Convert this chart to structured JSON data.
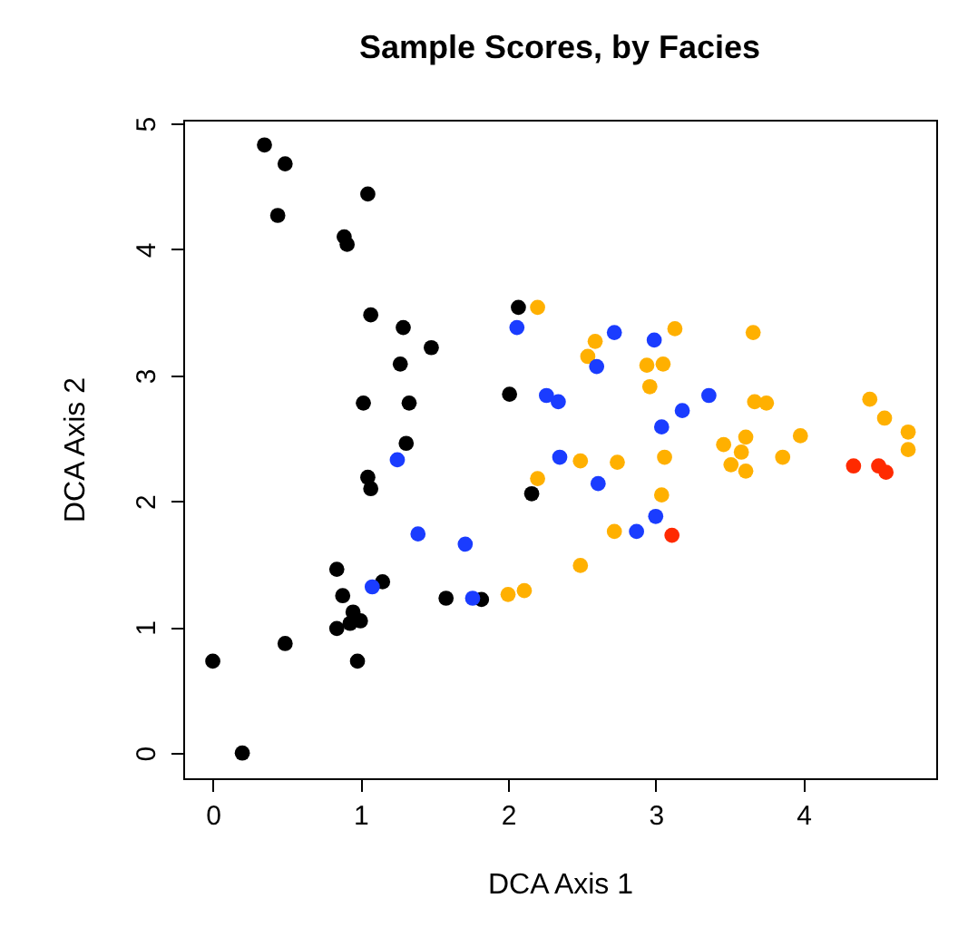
{
  "chart_data": {
    "type": "scatter",
    "title": "Sample Scores, by Facies",
    "xlabel": "DCA Axis 1",
    "ylabel": "DCA Axis 2",
    "xlim": [
      -0.2,
      4.9
    ],
    "ylim": [
      -0.2,
      5.03
    ],
    "xticks": [
      0,
      1,
      2,
      3,
      4
    ],
    "yticks": [
      0,
      1,
      2,
      3,
      4,
      5
    ],
    "marker": "circle",
    "series": [
      {
        "color": "#000000",
        "x": [
          0.35,
          0.49,
          1.05,
          0.44,
          0.89,
          0.91,
          1.07,
          1.29,
          1.48,
          1.27,
          1.02,
          1.33,
          1.31,
          2.07,
          2.01,
          1.05,
          1.07,
          2.16,
          0.84,
          1.15,
          0.88,
          0.95,
          1.0,
          0.84,
          0.93,
          0.49,
          0.0,
          0.98,
          0.2,
          1.58,
          1.82
        ],
        "values": [
          4.83,
          4.68,
          4.44,
          4.27,
          4.1,
          4.04,
          3.48,
          3.38,
          3.22,
          3.09,
          2.78,
          2.78,
          2.46,
          3.54,
          2.85,
          2.19,
          2.1,
          2.06,
          1.46,
          1.36,
          1.25,
          1.12,
          1.05,
          0.99,
          1.03,
          0.87,
          0.73,
          0.73,
          0.0,
          1.23,
          1.22
        ]
      },
      {
        "color": "#ffb000",
        "x": [
          2.2,
          2.59,
          2.54,
          3.13,
          2.94,
          3.05,
          2.96,
          3.66,
          3.67,
          3.75,
          4.45,
          4.55,
          4.71,
          4.71,
          3.46,
          3.61,
          3.58,
          3.51,
          3.61,
          3.86,
          3.98,
          3.06,
          2.49,
          2.74,
          2.2,
          3.04,
          2.72,
          2.49,
          2.0,
          2.11
        ],
        "values": [
          3.54,
          3.27,
          3.15,
          3.37,
          3.08,
          3.09,
          2.91,
          3.34,
          2.79,
          2.78,
          2.81,
          2.66,
          2.55,
          2.41,
          2.45,
          2.51,
          2.39,
          2.29,
          2.24,
          2.35,
          2.52,
          2.35,
          2.32,
          2.31,
          2.18,
          2.05,
          1.76,
          1.49,
          1.26,
          1.29
        ]
      },
      {
        "color": "#1a3cff",
        "x": [
          2.06,
          1.25,
          1.39,
          1.71,
          1.08,
          1.76,
          2.26,
          2.34,
          2.72,
          2.6,
          2.99,
          3.36,
          3.18,
          3.04,
          2.35,
          2.61,
          3.0,
          2.87
        ],
        "values": [
          3.38,
          2.33,
          1.74,
          1.66,
          1.32,
          1.23,
          2.84,
          2.79,
          3.34,
          3.07,
          3.28,
          2.84,
          2.72,
          2.59,
          2.35,
          2.14,
          1.88,
          1.76
        ]
      },
      {
        "color": "#ff2a00",
        "x": [
          3.11,
          4.34,
          4.51,
          4.56
        ],
        "values": [
          1.73,
          2.28,
          2.28,
          2.23
        ]
      }
    ]
  }
}
